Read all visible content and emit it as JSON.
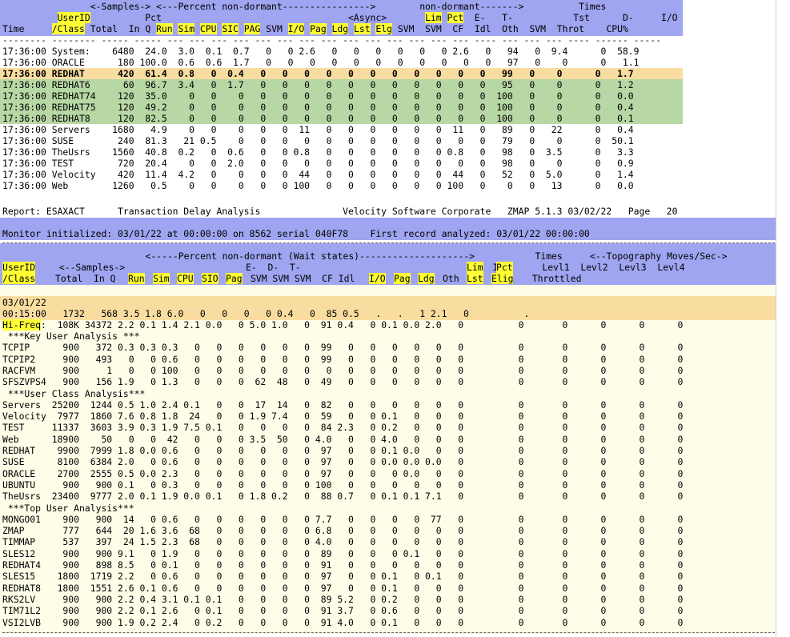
{
  "colors": {
    "header_bg": "#9fa5f0",
    "highlight": "#ffff33",
    "row_orange": "#f9dda0",
    "row_green": "#b7d7a4",
    "lower_bg": "#fdfde8"
  },
  "top": {
    "hdr1": "                <-Samples-> <---Percent non-dormant---------------->        non-dormant------->          Times          ",
    "hdr2a": "          ",
    "hdr2_userid": "UserID",
    "hdr2b": "          Pct                                  <Async>       ",
    "hdr2_lim": "Lim",
    "hdr2_pct": "Pct",
    "hdr2c": "  E-   T-           Tst      D-     I/O           ",
    "hdr3_time": "Time     ",
    "hdr3_class": "/Class",
    "hdr3_cols": [
      " Total  In Q ",
      "Run",
      " ",
      "Sim",
      " ",
      "CPU",
      " ",
      "SIC",
      " ",
      "PAG",
      " SVM ",
      "I/O",
      " ",
      "Pag",
      " ",
      "Ldg",
      " ",
      "Lst",
      " ",
      "Elg",
      " SVM  SVM  CF  Idl  Oth  SVM  Throt    CPU%"
    ],
    "hdr3_hl": [
      false,
      true,
      false,
      true,
      false,
      true,
      false,
      true,
      false,
      true,
      false,
      true,
      false,
      true,
      false,
      true,
      false,
      true,
      false,
      true,
      false
    ],
    "dash": "-------- -------- ----- ----- --- --- --- --- --- --- --- --- --- --- --- --- --- --- ---- --- --- --- ---- ------ -----",
    "rows": [
      {
        "text": "17:36:00 System:    6480  24.0  3.0  0.1  0.7   0   0 2.6   0   0   0   0   0   0 2.6   0   94   0  9.4      0  58.9",
        "style": ""
      },
      {
        "text": "17:36:00 ORACLE      180 100.0  0.6  0.6  1.7   0   0   0   0   0   0   0   0   0   0   0   97   0    0      0   1.1",
        "style": ""
      },
      {
        "text": "17:36:00 REDHAT      420  61.4  0.8   0  0.4   0   0   0   0   0   0   0   0   0   0   0   99   0    0      0   1.7",
        "style": "orange"
      },
      {
        "text": "17:36:00 REDHAT6      60  96.7  3.4   0  1.7   0   0   0   0   0   0   0   0   0   0   0   95   0    0      0   1.2",
        "style": "green"
      },
      {
        "text": "17:36:00 REDHAT74    120  35.0    0   0    0   0   0   0   0   0   0   0   0   0   0   0  100   0    0      0   0.0",
        "style": "green"
      },
      {
        "text": "17:36:00 REDHAT75    120  49.2    0   0    0   0   0   0   0   0   0   0   0   0   0   0  100   0    0      0   0.4",
        "style": "green"
      },
      {
        "text": "17:36:00 REDHAT8     120  82.5    0   0    0   0   0   0   0   0   0   0   0   0   0   0  100   0    0      0   0.1",
        "style": "green"
      },
      {
        "text": "17:36:00 Servers    1680   4.9    0   0    0   0   0  11   0   0   0   0   0   0  11   0   89   0   22      0   0.4",
        "style": ""
      },
      {
        "text": "17:36:00 SUSE        240  81.3   21 0.5    0   0   0   0   0   0   0   0   0   0   0   0   79   0    0      0  50.1",
        "style": ""
      },
      {
        "text": "17:36:00 TheUsrs    1560  40.8  0.2   0  0.6   0   0 0.8   0   0   0   0   0   0 0.8   0   98   0  3.5      0   3.3",
        "style": ""
      },
      {
        "text": "17:36:00 TEST        720  20.4    0   0  2.0   0   0   0   0   0   0   0   0   0   0   0   98   0    0      0   0.9",
        "style": ""
      },
      {
        "text": "17:36:00 Velocity    420  11.4  4.2   0    0   0   0  44   0   0   0   0   0   0  44   0   52   0  5.0      0   1.4",
        "style": ""
      },
      {
        "text": "17:36:00 Web        1260   0.5    0   0    0   0   0 100   0   0   0   0   0   0 100   0    0   0   13      0   0.0",
        "style": ""
      }
    ]
  },
  "report_line": "Report: ESAXACT      Transaction Delay Analysis               Velocity Software Corporate   ZMAP 5.1.3 03/02/22   Page   20",
  "monitor_line": "Monitor initialized: 03/01/22 at 00:00:00 on 8562 serial 040F78    First record analyzed: 03/01/22 00:00:00",
  "bottom": {
    "hdr1": "          <-----Percent non-dormant (Wait states)-------------------->           Times     <--Topography Moves/Sec->",
    "hdr2": " <--Samples->                      E-  D-  T-                                   I/O      Levl1  Levl2  Levl3  Levl4",
    "hdr2_userid": "UserID",
    "hdr2_lim": "Lim",
    "hdr2_pct": "Pct",
    "hdr2_mid": "SVM SVM SVM  CF Tst Idl <Asynch>                        ",
    "hdr3_class": "/Class",
    "hdr3_tail": "  Throttled",
    "date_line": "03/01/22",
    "time_row": "00:15:00   1732   568 3.5 1.8 6.0   0   0   0   0 0.4   0  85 0.5   .   .   1 2.1   0          .",
    "hifreq_label": "Hi-Freq",
    "hifreq_rest": ":  108K 34372 2.2 0.1 1.4 2.1 0.0   0 5.0 1.0   0  91 0.4   0 0.1 0.0 2.0   0          0       0      0      0      0",
    "sections": [
      {
        "title": " ***Key User Analysis ***",
        "rows": [
          "TCPIP      900   372 0.3 0.3 0.3   0   0   0   0   0   0  99   0   0   0   0   0   0          0       0      0      0      0",
          "TCPIP2     900   493   0   0 0.6   0   0   0   0   0   0  99   0   0   0   0   0   0          0       0      0      0      0",
          "RACFVM     900     1   0   0 100   0   0   0   0   0   0   0   0   0   0   0   0   0          0       0      0      0      0",
          "SFSZVPS4   900   156 1.9   0 1.3   0   0   0  62  48   0  49   0   0   0   0   0   0          0       0      0      0      0"
        ]
      },
      {
        "title": " ***User Class Analysis***",
        "rows": [
          "Servers  25200  1244 0.5 1.0 2.4 0.1   0   0  17  14   0  82   0   0   0   0   0   0          0       0      0      0      0",
          "Velocity  7977  1860 7.6 0.8 1.8  24   0   0 1.9 7.4   0  59   0   0 0.1   0   0   0          0       0      0      0      0",
          "TEST     11337  3603 3.9 0.3 1.9 7.5 0.1   0   0   0   0  84 2.3   0 0.2   0   0   0          0       0      0      0      0",
          "Web      18900    50   0   0  42   0   0   0 3.5  50   0 4.0   0   0 4.0   0   0   0          0       0      0      0      0",
          "REDHAT    9900  7999 1.8 0.0 0.6   0   0   0   0   0   0  97   0   0 0.1 0.0   0   0          0       0      0      0      0",
          "SUSE      8100  6384 2.0   0 0.6   0   0   0   0   0   0  97   0   0 0.0 0.0 0.0   0          0       0      0      0      0",
          "ORACLE    2700  2555 0.5 0.0 2.3   0   0   0   0   0   0  97   0   0   0 0.0   0   0          0       0      0      0      0",
          "UBUNTU     900   900 0.1   0 0.3   0   0   0   0   0   0 100   0   0   0   0   0   0          0       0      0      0      0",
          "TheUsrs  23400  9777 2.0 0.1 1.9 0.0 0.1   0 1.8 0.2   0  88 0.7   0 0.1 0.1 7.1   0          0       0      0      0      0"
        ]
      },
      {
        "title": " ***Top User Analysis***",
        "rows": [
          "MONGO01    900   900  14   0 0.6   0   0   0   0   0   0 7.7   0   0   0   0  77   0          0       0      0      0      0",
          "ZMAP       777   644  20 1.6 3.6  68   0   0   0   0   0 6.8   0   0   0   0   0   0          0       0      0      0      0",
          "TIMMAP     537   397  24 1.5 2.3  68   0   0   0   0   0 4.0   0   0   0   0   0   0          0       0      0      0      0",
          "SLES12     900   900 9.1   0 1.9   0   0   0   0   0   0  89   0   0   0 0.1   0   0          0       0      0      0      0",
          "REDHAT4    900   898 8.5   0 0.1   0   0   0   0   0   0  91   0   0   0   0   0   0          0       0      0      0      0",
          "SLES15    1800  1719 2.2   0 0.6   0   0   0   0   0   0  97   0   0 0.1   0 0.1   0          0       0      0      0      0",
          "REDHAT8   1800  1551 2.6 0.1 0.6   0   0   0   0   0   0  97   0   0 0.1   0   0   0          0       0      0      0      0",
          "RKS2LV     900   900 2.2 0.4 3.1 0.1 0.1   0   0   0   0  89 5.2   0 0.2   0   0   0          0       0      0      0      0",
          "TIM71L2    900   900 2.2 0.1 2.6   0 0.1   0   0   0   0  91 3.7   0 0.6   0   0   0          0       0      0      0      0",
          "VSI2LVB    900   900 1.9 0.2 2.4   0 0.2   0   0   0   0  91 4.0   0 0.1   0   0   0          0       0      0      0      0"
        ]
      }
    ]
  }
}
